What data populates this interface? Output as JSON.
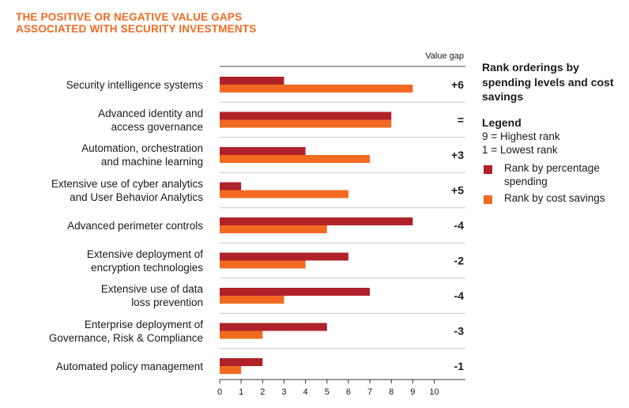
{
  "title_line1": "THE POSITIVE OR NEGATIVE VALUE GAPS",
  "title_line2": "ASSOCIATED WITH SECURITY INVESTMENTS",
  "value_gap_header": "Value gap",
  "legend": {
    "rank_title": "Rank orderings by spending levels and cost savings",
    "title": "Legend",
    "highest": "9 = Highest rank",
    "lowest": "1 = Lowest rank",
    "spending_label": "Rank by percentage spending",
    "savings_label": "Rank by cost savings"
  },
  "colors": {
    "spending": "#b0222a",
    "savings": "#f26a21",
    "title": "#f26a21"
  },
  "chart_data": {
    "type": "bar",
    "orientation": "horizontal",
    "categories": [
      [
        "Security intelligence systems"
      ],
      [
        "Advanced identity and",
        "access governance"
      ],
      [
        "Automation, orchestration",
        "and machine learning"
      ],
      [
        "Extensive use of cyber analytics",
        "and User Behavior Analytics"
      ],
      [
        "Advanced perimeter controls"
      ],
      [
        "Extensive deployment of",
        "encryption technologies"
      ],
      [
        "Extensive use of data",
        "loss prevention"
      ],
      [
        "Enterprise deployment of",
        "Governance, Risk & Compliance"
      ],
      [
        "Automated policy management"
      ]
    ],
    "series": [
      {
        "name": "Rank by percentage spending",
        "values": [
          3,
          8,
          4,
          1,
          9,
          6,
          7,
          5,
          2
        ]
      },
      {
        "name": "Rank by cost savings",
        "values": [
          9,
          8,
          7,
          6,
          5,
          4,
          3,
          2,
          1
        ]
      }
    ],
    "value_gaps": [
      "+6",
      "=",
      "+3",
      "+5",
      "-4",
      "-2",
      "-4",
      "-3",
      "-1"
    ],
    "xlim": [
      0,
      11
    ],
    "xticks": [
      0,
      1,
      2,
      3,
      4,
      5,
      6,
      7,
      8,
      9,
      10
    ],
    "grid": false,
    "legend_position": "right"
  }
}
